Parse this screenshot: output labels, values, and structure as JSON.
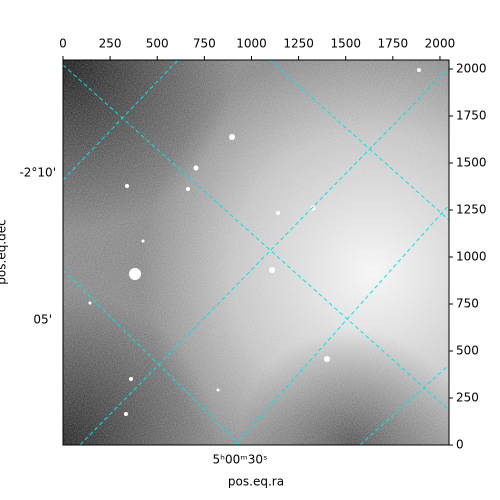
{
  "chart_data": {
    "type": "image",
    "xlabel": "pos.eq.ra",
    "ylabel": "pos.eq.dec",
    "xlim": [
      0,
      2048
    ],
    "ylim": [
      0,
      2048
    ],
    "xticks": [
      0,
      250,
      500,
      750,
      1000,
      1250,
      1500,
      1750,
      2000
    ],
    "yticks": [
      0,
      250,
      500,
      750,
      1000,
      1250,
      1500,
      1750,
      2000
    ],
    "world_labels": {
      "ra": [
        "5ʰ00ᵐ30ˢ"
      ],
      "dec": [
        "-2°10'",
        "05'"
      ]
    },
    "grid_color": "#00e5e5"
  }
}
